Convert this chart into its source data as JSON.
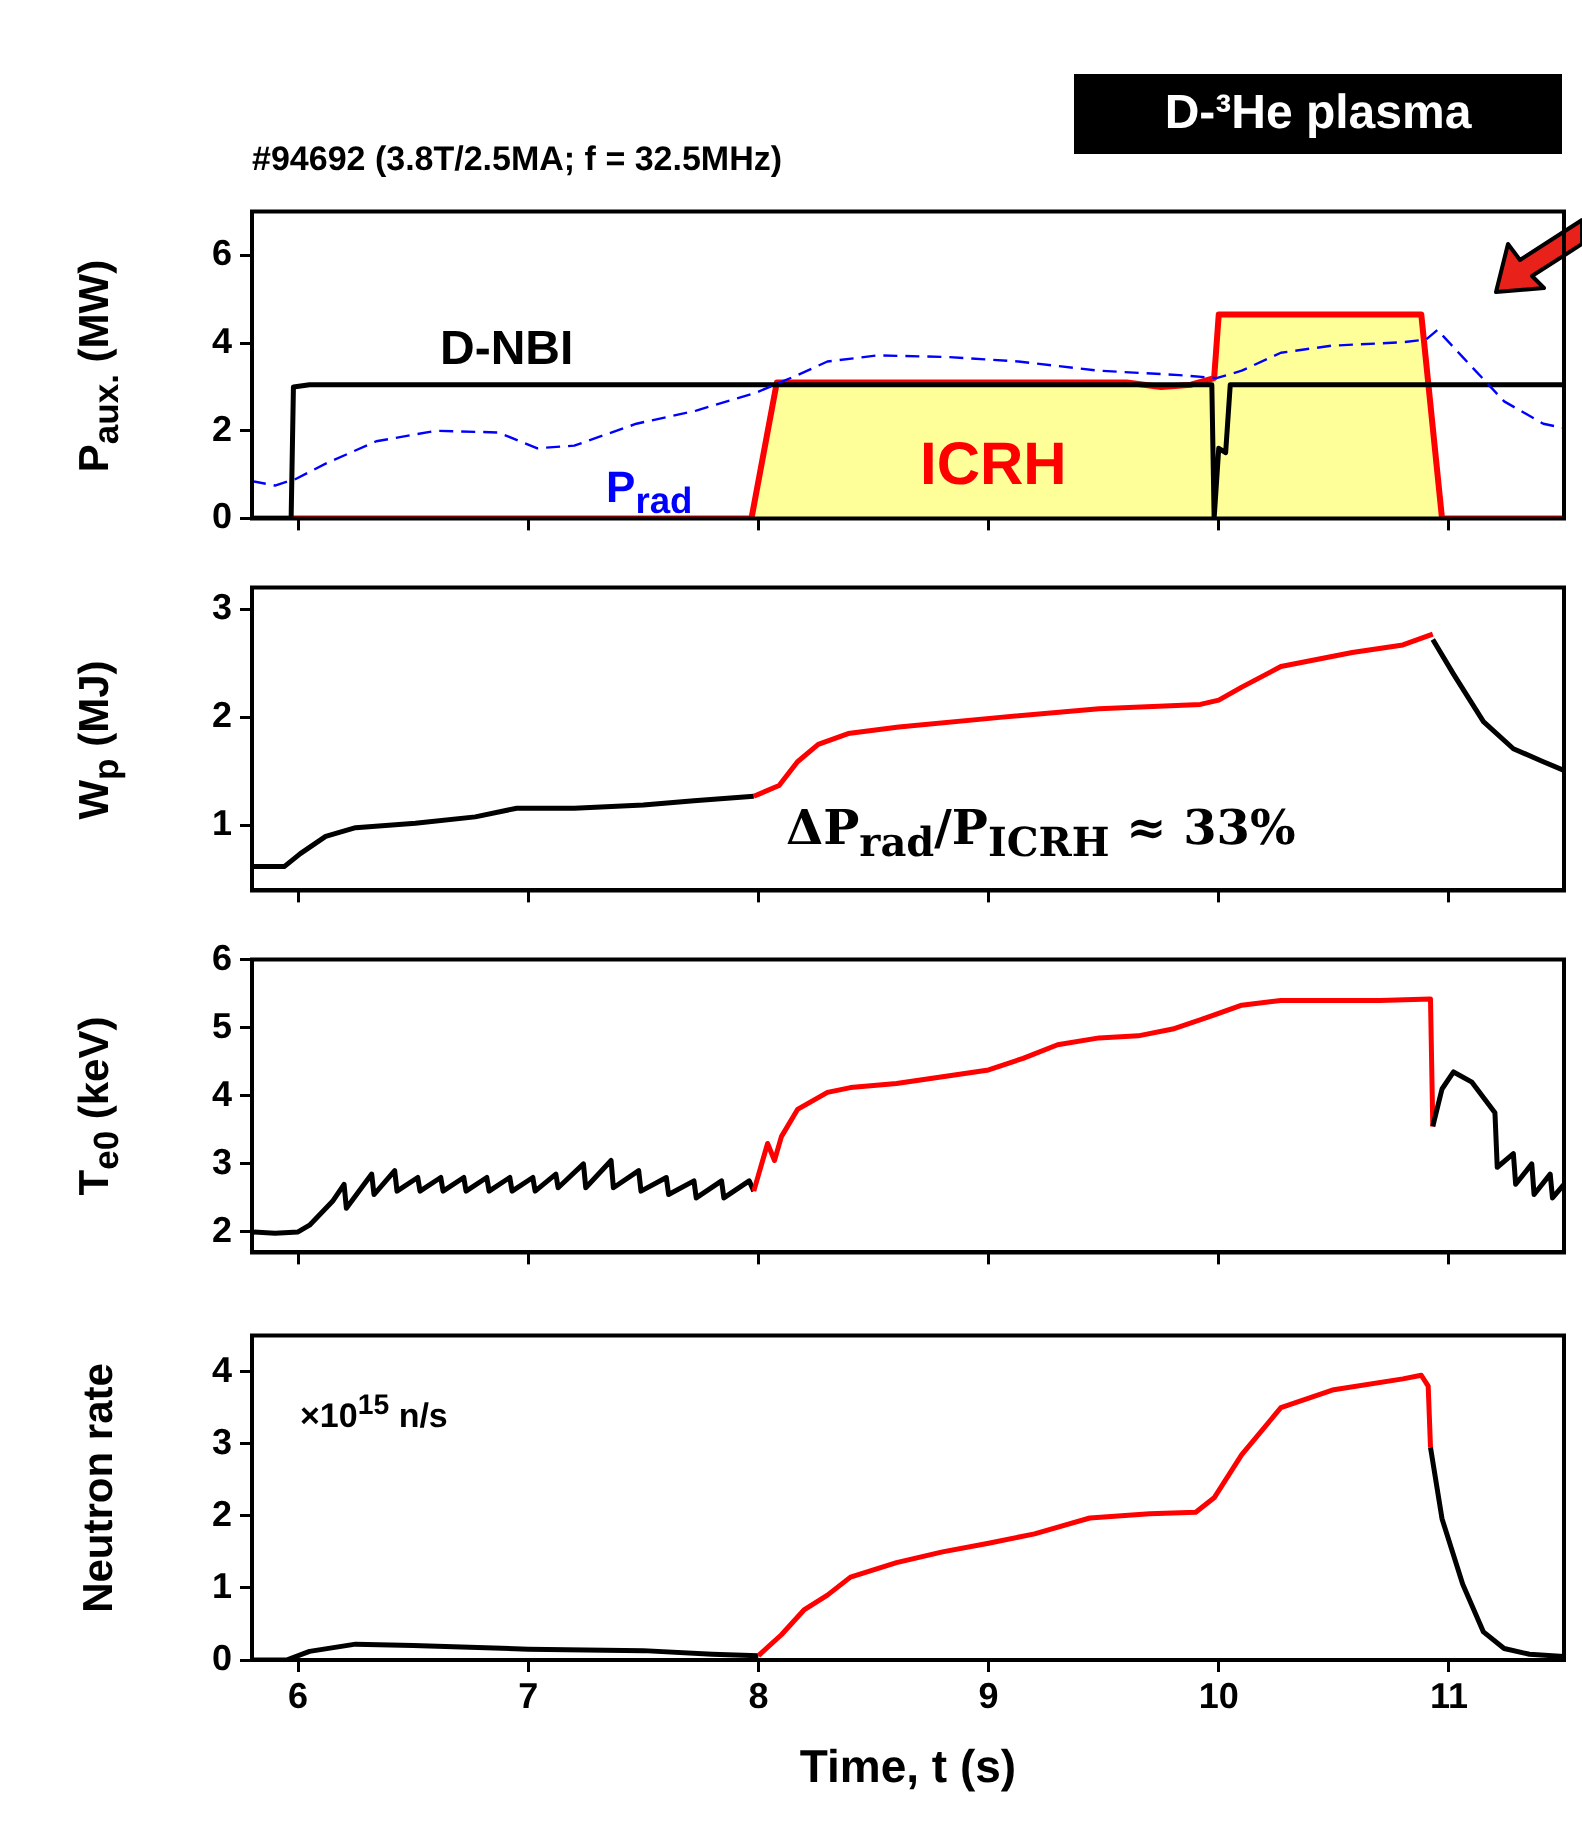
{
  "chart_data": [
    {
      "type": "line",
      "title": "#94692 (3.8T/2.5MA; f = 32.5MHz)",
      "ylabel": "P$_{aux.}$ (MW)",
      "annotations": [
        "D-³He plasma"
      ],
      "xlim": [
        5.8,
        11.5
      ],
      "xticks": [
        6,
        7,
        8,
        9,
        10,
        11
      ],
      "ylim": [
        0,
        7
      ],
      "yticks": [
        0,
        2,
        4,
        6
      ],
      "tick_labels": "y",
      "marker": "none",
      "series": [
        {
          "name": "ICRH",
          "type": "area",
          "color": "#ff0000",
          "x": [
            5.8,
            7.97,
            8.08,
            9.6,
            9.75,
            9.88,
            9.98,
            10.0,
            10.88,
            10.97,
            11.5
          ],
          "values": [
            0,
            0,
            3.1,
            3.1,
            3.0,
            3.05,
            3.2,
            4.65,
            4.65,
            0,
            0
          ]
        },
        {
          "name": "D-NBI",
          "color": "#000000",
          "x": [
            5.8,
            5.97,
            5.98,
            6.05,
            9.97,
            9.98,
            10.0,
            10.03,
            10.05,
            11.5
          ],
          "values": [
            0,
            0,
            3.0,
            3.05,
            3.05,
            0,
            1.6,
            1.5,
            3.05,
            3.05
          ]
        },
        {
          "name": "P$_{rad}$",
          "color": "#0000ff",
          "line_style": "dashed",
          "x": [
            5.8,
            5.9,
            5.99,
            6.12,
            6.34,
            6.6,
            6.87,
            7.04,
            7.2,
            7.47,
            7.73,
            7.99,
            8.17,
            8.3,
            8.52,
            8.83,
            9.13,
            9.48,
            9.83,
            9.99,
            10.1,
            10.27,
            10.49,
            10.8,
            10.9,
            10.95,
            11.06,
            11.24,
            11.41,
            11.5
          ],
          "values": [
            0.85,
            0.75,
            0.9,
            1.25,
            1.76,
            2.0,
            1.96,
            1.6,
            1.66,
            2.16,
            2.46,
            2.87,
            3.27,
            3.58,
            3.72,
            3.68,
            3.58,
            3.37,
            3.27,
            3.2,
            3.37,
            3.78,
            3.94,
            4.02,
            4.08,
            4.3,
            3.68,
            2.67,
            2.16,
            2.06
          ]
        }
      ]
    },
    {
      "type": "line",
      "ylabel": "W$_{p}$ (MJ)",
      "annotations": [
        "ΔP$_{rad}$/P$_{ICRH}$ ≈ 33%"
      ],
      "xlim": [
        5.8,
        11.5
      ],
      "xticks": [
        6,
        7,
        8,
        9,
        10,
        11
      ],
      "ylim": [
        0.4,
        3.2
      ],
      "yticks": [
        1,
        2,
        3
      ],
      "tick_labels": "y",
      "marker": "none",
      "series": [
        {
          "color": "#000000",
          "x": [
            5.8,
            5.94,
            6.01,
            6.12,
            6.25,
            6.51,
            6.77,
            6.95,
            7.2,
            7.5,
            7.72,
            7.98
          ],
          "values": [
            0.62,
            0.62,
            0.74,
            0.9,
            0.98,
            1.02,
            1.08,
            1.16,
            1.16,
            1.19,
            1.23,
            1.27
          ]
        },
        {
          "color": "#ff0000",
          "x": [
            7.98,
            8.09,
            8.17,
            8.26,
            8.39,
            8.61,
            9.05,
            9.48,
            9.92,
            10.0,
            10.1,
            10.27,
            10.58,
            10.8,
            10.93
          ],
          "values": [
            1.27,
            1.37,
            1.59,
            1.75,
            1.85,
            1.91,
            2.0,
            2.08,
            2.12,
            2.16,
            2.28,
            2.47,
            2.6,
            2.67,
            2.77
          ]
        },
        {
          "color": "#000000",
          "x": [
            10.93,
            11.02,
            11.15,
            11.28,
            11.41,
            11.5
          ],
          "values": [
            2.72,
            2.4,
            1.96,
            1.71,
            1.59,
            1.51
          ]
        }
      ]
    },
    {
      "type": "line",
      "ylabel": "T$_{e0}$ (keV)",
      "xlim": [
        5.8,
        11.5
      ],
      "xticks": [
        6,
        7,
        8,
        9,
        10,
        11
      ],
      "ylim": [
        1.7,
        6
      ],
      "yticks": [
        2,
        3,
        4,
        5,
        6
      ],
      "tick_labels": "y",
      "marker": "none",
      "series": [
        {
          "color": "#000000",
          "x": [
            5.8,
            5.9,
            6.0,
            6.05,
            6.15,
            6.2,
            6.21,
            6.32,
            6.33,
            6.42,
            6.43,
            6.52,
            6.53,
            6.62,
            6.63,
            6.72,
            6.73,
            6.82,
            6.83,
            6.92,
            6.93,
            7.02,
            7.03,
            7.12,
            7.13,
            7.24,
            7.25,
            7.36,
            7.37,
            7.48,
            7.49,
            7.6,
            7.61,
            7.72,
            7.73,
            7.84,
            7.85,
            7.96,
            7.98
          ],
          "values": [
            2.0,
            1.98,
            2.0,
            2.1,
            2.45,
            2.7,
            2.35,
            2.85,
            2.55,
            2.9,
            2.6,
            2.8,
            2.6,
            2.8,
            2.6,
            2.8,
            2.6,
            2.8,
            2.6,
            2.8,
            2.6,
            2.8,
            2.6,
            2.85,
            2.65,
            3.0,
            2.65,
            3.05,
            2.65,
            2.9,
            2.6,
            2.8,
            2.55,
            2.75,
            2.5,
            2.75,
            2.5,
            2.75,
            2.6
          ]
        },
        {
          "color": "#ff0000",
          "x": [
            7.98,
            8.04,
            8.07,
            8.1,
            8.17,
            8.3,
            8.4,
            8.6,
            8.8,
            9.0,
            9.15,
            9.3,
            9.48,
            9.65,
            9.8,
            9.95,
            10.1,
            10.27,
            10.5,
            10.7,
            10.92,
            10.93
          ],
          "values": [
            2.6,
            3.3,
            3.05,
            3.4,
            3.8,
            4.05,
            4.12,
            4.18,
            4.28,
            4.38,
            4.55,
            4.75,
            4.85,
            4.88,
            4.98,
            5.15,
            5.33,
            5.4,
            5.4,
            5.4,
            5.42,
            3.55
          ]
        },
        {
          "color": "#000000",
          "x": [
            10.93,
            10.97,
            11.02,
            11.1,
            11.2,
            11.21,
            11.28,
            11.29,
            11.36,
            11.37,
            11.44,
            11.45,
            11.5
          ],
          "values": [
            3.55,
            4.1,
            4.35,
            4.2,
            3.75,
            2.95,
            3.15,
            2.7,
            3.0,
            2.55,
            2.85,
            2.5,
            2.7
          ]
        }
      ]
    },
    {
      "type": "line",
      "ylabel": "Neutron rate",
      "xlabel": "Time, t (s)",
      "annotations": [
        "×10$^{15}$ n/s"
      ],
      "xlim": [
        5.8,
        11.5
      ],
      "xticks": [
        6,
        7,
        8,
        9,
        10,
        11
      ],
      "ylim": [
        0,
        4.5
      ],
      "yticks": [
        0,
        1,
        2,
        3,
        4
      ],
      "marker": "none",
      "series": [
        {
          "color": "#000000",
          "x": [
            5.8,
            5.95,
            6.05,
            6.25,
            6.5,
            7.0,
            7.5,
            7.8,
            8.0
          ],
          "values": [
            0,
            0,
            0.12,
            0.22,
            0.2,
            0.15,
            0.13,
            0.08,
            0.06
          ]
        },
        {
          "color": "#ff0000",
          "x": [
            8.0,
            8.1,
            8.2,
            8.3,
            8.4,
            8.6,
            8.8,
            9.0,
            9.2,
            9.44,
            9.7,
            9.9,
            9.98,
            10.1,
            10.27,
            10.5,
            10.8,
            10.88,
            10.91,
            10.92
          ],
          "values": [
            0.06,
            0.35,
            0.7,
            0.9,
            1.15,
            1.35,
            1.5,
            1.62,
            1.75,
            1.97,
            2.03,
            2.05,
            2.25,
            2.85,
            3.5,
            3.75,
            3.9,
            3.95,
            3.8,
            2.95
          ]
        },
        {
          "color": "#000000",
          "x": [
            10.92,
            10.97,
            11.06,
            11.15,
            11.24,
            11.35,
            11.5
          ],
          "values": [
            2.95,
            1.96,
            1.05,
            0.39,
            0.16,
            0.08,
            0.05
          ]
        }
      ]
    }
  ]
}
